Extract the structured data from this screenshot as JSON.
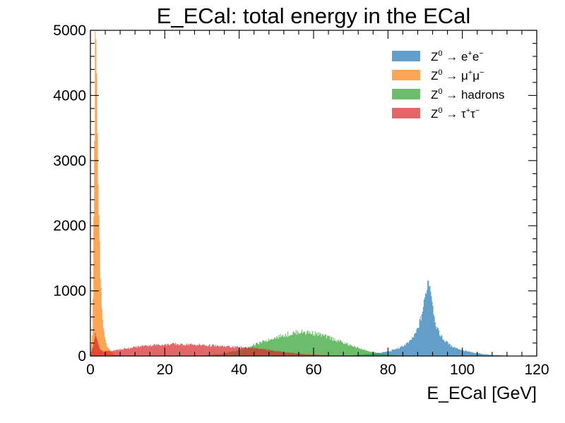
{
  "chart_data": {
    "type": "histogram",
    "title": "E_ECal: total energy in the ECal",
    "xlabel": "E_ECal [GeV]",
    "ylabel": "",
    "xlim": [
      0,
      120
    ],
    "ylim": [
      0,
      5000
    ],
    "x_ticks": [
      0,
      20,
      40,
      60,
      80,
      100,
      120
    ],
    "y_ticks": [
      0,
      1000,
      2000,
      3000,
      4000,
      5000
    ],
    "grid": false,
    "legend_position": "top-right",
    "series": [
      {
        "name": "Z⁰ → e⁺e⁻",
        "label_parts": [
          "Z",
          "0",
          " → e",
          "+",
          "e",
          "−"
        ],
        "label_super": [
          false,
          true,
          false,
          true,
          false,
          true
        ],
        "color": "#1f77b4",
        "opacity": 0.7,
        "points": [
          [
            60,
            0
          ],
          [
            70,
            10
          ],
          [
            76,
            35
          ],
          [
            80,
            70
          ],
          [
            83,
            120
          ],
          [
            85,
            190
          ],
          [
            86,
            230
          ],
          [
            87,
            300
          ],
          [
            88,
            420
          ],
          [
            89,
            620
          ],
          [
            90,
            900
          ],
          [
            90.7,
            1150
          ],
          [
            91.2,
            1150
          ],
          [
            91.8,
            920
          ],
          [
            92.5,
            600
          ],
          [
            93.5,
            380
          ],
          [
            95,
            250
          ],
          [
            97,
            160
          ],
          [
            100,
            90
          ],
          [
            103,
            50
          ],
          [
            107,
            20
          ],
          [
            112,
            6
          ],
          [
            118,
            0
          ]
        ]
      },
      {
        "name": "Z⁰ → μ⁺μ⁻",
        "label_parts": [
          "Z",
          "0",
          " → μ",
          "+",
          "μ",
          "−"
        ],
        "label_super": [
          false,
          true,
          false,
          true,
          false,
          true
        ],
        "color": "#ff7f0e",
        "opacity": 0.7,
        "points": [
          [
            0,
            0
          ],
          [
            0.6,
            400
          ],
          [
            1.0,
            2500
          ],
          [
            1.3,
            4900
          ],
          [
            1.6,
            4700
          ],
          [
            1.9,
            3400
          ],
          [
            2.3,
            2000
          ],
          [
            2.7,
            1300
          ],
          [
            3.2,
            550
          ],
          [
            3.8,
            300
          ],
          [
            4.5,
            160
          ],
          [
            5.5,
            60
          ],
          [
            6.5,
            25
          ],
          [
            8,
            10
          ],
          [
            12,
            5
          ],
          [
            30,
            2
          ],
          [
            50,
            1
          ],
          [
            80,
            0
          ]
        ]
      },
      {
        "name": "Z⁰ → hadrons",
        "label_parts": [
          "Z",
          "0",
          " → hadrons"
        ],
        "label_super": [
          false,
          true,
          false
        ],
        "color": "#2ca02c",
        "opacity": 0.7,
        "points": [
          [
            28,
            0
          ],
          [
            35,
            30
          ],
          [
            40,
            90
          ],
          [
            45,
            190
          ],
          [
            50,
            290
          ],
          [
            55,
            355
          ],
          [
            57,
            370
          ],
          [
            60,
            355
          ],
          [
            65,
            270
          ],
          [
            70,
            160
          ],
          [
            75,
            70
          ],
          [
            80,
            20
          ],
          [
            85,
            5
          ],
          [
            90,
            0
          ]
        ]
      },
      {
        "name": "Z⁰ → τ⁺τ⁻",
        "label_parts": [
          "Z",
          "0",
          " → τ",
          "+",
          "τ",
          "−"
        ],
        "label_super": [
          false,
          true,
          false,
          true,
          false,
          true
        ],
        "color": "#d62728",
        "opacity": 0.7,
        "points": [
          [
            0,
            0
          ],
          [
            0.7,
            150
          ],
          [
            1.2,
            320
          ],
          [
            1.7,
            300
          ],
          [
            2.4,
            120
          ],
          [
            3.5,
            70
          ],
          [
            6,
            80
          ],
          [
            10,
            120
          ],
          [
            15,
            160
          ],
          [
            20,
            180
          ],
          [
            25,
            180
          ],
          [
            30,
            170
          ],
          [
            35,
            150
          ],
          [
            40,
            135
          ],
          [
            43,
            130
          ],
          [
            47,
            100
          ],
          [
            52,
            60
          ],
          [
            58,
            25
          ],
          [
            65,
            10
          ],
          [
            75,
            3
          ],
          [
            85,
            0
          ]
        ]
      }
    ]
  }
}
